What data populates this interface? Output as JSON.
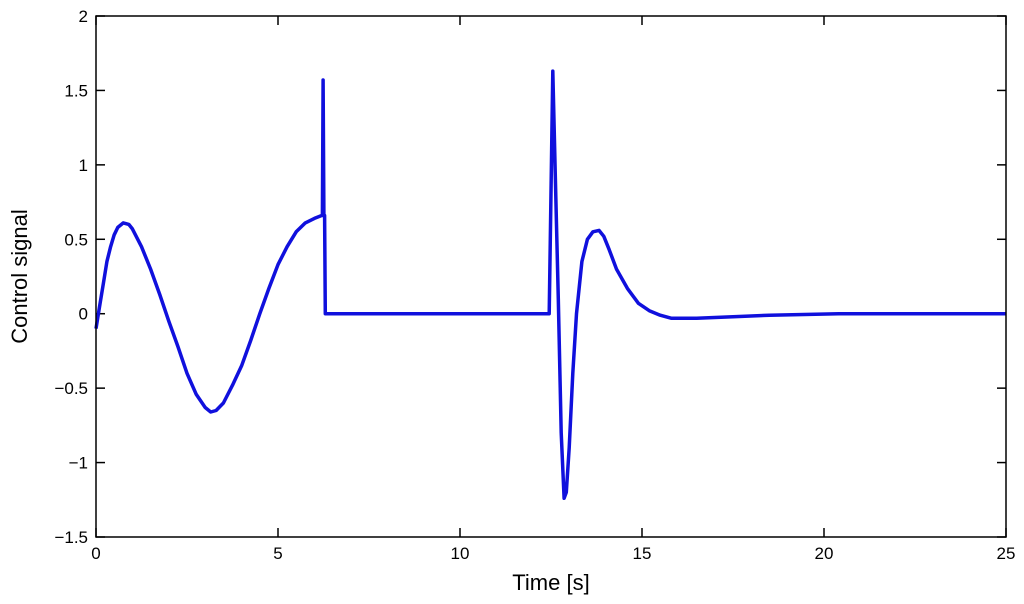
{
  "chart_data": {
    "type": "line",
    "title": "",
    "xlabel": "Time [s]",
    "ylabel": "Control signal",
    "xlim": [
      0,
      25
    ],
    "ylim": [
      -1.5,
      2
    ],
    "xticks": [
      0,
      5,
      10,
      15,
      20,
      25
    ],
    "xtick_labels": [
      "0",
      "5",
      "10",
      "15",
      "20",
      "25"
    ],
    "yticks": [
      -1.5,
      -1,
      -0.5,
      0,
      0.5,
      1,
      1.5,
      2
    ],
    "ytick_labels": [
      "−1.5",
      "−1",
      "−0.5",
      "0",
      "0.5",
      "1",
      "1.5",
      "2"
    ],
    "grid": false,
    "series": [
      {
        "name": "control signal",
        "color": "#1010dd",
        "x": [
          0,
          0.1,
          0.2,
          0.3,
          0.4,
          0.5,
          0.6,
          0.75,
          0.9,
          1.0,
          1.25,
          1.5,
          1.75,
          2.0,
          2.25,
          2.5,
          2.75,
          3.0,
          3.15,
          3.3,
          3.5,
          3.75,
          4.0,
          4.25,
          4.5,
          4.75,
          5.0,
          5.25,
          5.5,
          5.75,
          6.0,
          6.2,
          6.22,
          6.24,
          6.26,
          6.28,
          6.3,
          8,
          10,
          12.38,
          12.45,
          12.55,
          12.62,
          12.7,
          12.78,
          12.86,
          12.92,
          13.0,
          13.1,
          13.2,
          13.35,
          13.5,
          13.65,
          13.82,
          13.95,
          14.1,
          14.3,
          14.6,
          14.9,
          15.2,
          15.5,
          15.8,
          16.5,
          17.5,
          18.5,
          20.4,
          22,
          25
        ],
        "y": [
          -0.1,
          0.05,
          0.2,
          0.35,
          0.45,
          0.53,
          0.58,
          0.61,
          0.6,
          0.57,
          0.45,
          0.3,
          0.13,
          -0.05,
          -0.22,
          -0.4,
          -0.54,
          -0.63,
          -0.66,
          -0.65,
          -0.6,
          -0.48,
          -0.35,
          -0.18,
          0.0,
          0.17,
          0.33,
          0.45,
          0.55,
          0.61,
          0.64,
          0.66,
          0.66,
          1.57,
          0.66,
          0.66,
          0.0,
          0.0,
          0.0,
          0.0,
          0.0,
          1.63,
          0.9,
          0.1,
          -0.8,
          -1.24,
          -1.2,
          -0.9,
          -0.4,
          0.0,
          0.35,
          0.5,
          0.55,
          0.56,
          0.52,
          0.43,
          0.3,
          0.17,
          0.07,
          0.02,
          -0.01,
          -0.03,
          -0.03,
          -0.02,
          -0.01,
          0.0,
          0.0,
          0.0
        ]
      }
    ]
  }
}
